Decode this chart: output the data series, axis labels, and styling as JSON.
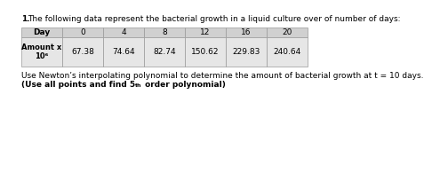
{
  "title_num": "1.",
  "title_text": "  The following data represent the bacterial growth in a liquid culture over of number of days:",
  "days": [
    "Day",
    "0",
    "4",
    "8",
    "12",
    "16",
    "20"
  ],
  "amount_label_line1": "Amount x",
  "amount_label_line2": "10⁶",
  "values": [
    "67.38",
    "74.64",
    "82.74",
    "150.62",
    "229.83",
    "240.64"
  ],
  "note_normal": "Use Newton’s interpolating polynomial to determine the amount of bacterial growth at t = 10 days.",
  "note_bold_pre": "(Use all points and find 5",
  "note_bold_super": "th",
  "note_bold_post": " order polynomial)",
  "header_bg": "#d0d0d0",
  "row_bg": "#e6e6e6",
  "white_bg": "#ffffff",
  "border_color": "#999999",
  "title_fontsize": 6.5,
  "table_fontsize": 6.5,
  "note_fontsize": 6.5
}
